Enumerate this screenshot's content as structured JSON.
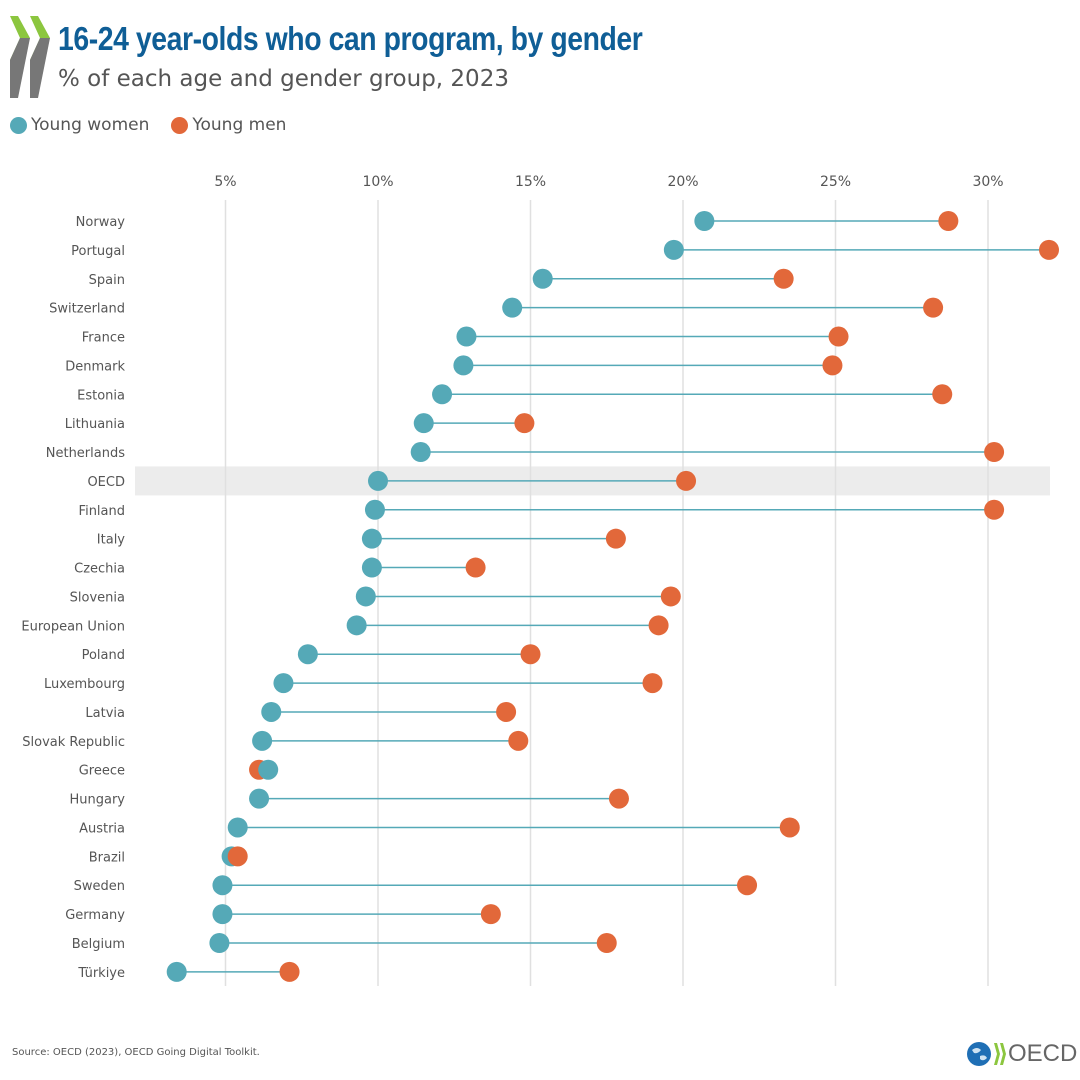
{
  "header": {
    "title": "16-24 year-olds who can program, by gender",
    "subtitle": "% of each age and gender group, 2023"
  },
  "footer": {
    "source": "Source: OECD (2023), OECD Going Digital Toolkit.",
    "logo_text": "OECD"
  },
  "colors": {
    "women": "#55a9b7",
    "men": "#e2683a",
    "title": "#0f5e96",
    "highlight": "#ececec"
  },
  "chart_data": {
    "type": "dot-plot",
    "title": "16-24 year-olds who can program, by gender",
    "subtitle": "% of each age and gender group, 2023",
    "xlim": [
      0,
      32
    ],
    "xticks": [
      5,
      10,
      15,
      20,
      25,
      30
    ],
    "xtick_labels": [
      "5%",
      "10%",
      "15%",
      "20%",
      "25%",
      "30%"
    ],
    "grid": true,
    "legend_placement": "top-left",
    "highlight_category": "OECD",
    "categories": [
      "Norway",
      "Portugal",
      "Spain",
      "Switzerland",
      "France",
      "Denmark",
      "Estonia",
      "Lithuania",
      "Netherlands",
      "OECD",
      "Finland",
      "Italy",
      "Czechia",
      "Slovenia",
      "European Union",
      "Poland",
      "Luxembourg",
      "Latvia",
      "Slovak Republic",
      "Greece",
      "Hungary",
      "Austria",
      "Brazil",
      "Sweden",
      "Germany",
      "Belgium",
      "Türkiye"
    ],
    "series": [
      {
        "name": "Young women",
        "values": [
          20.7,
          19.7,
          15.4,
          14.4,
          12.9,
          12.8,
          12.1,
          11.5,
          11.4,
          10.0,
          9.9,
          9.8,
          9.8,
          9.6,
          9.3,
          7.7,
          6.9,
          6.5,
          6.2,
          6.4,
          6.1,
          5.4,
          5.2,
          4.9,
          4.9,
          4.8,
          3.4
        ]
      },
      {
        "name": "Young men",
        "values": [
          28.7,
          32.0,
          23.3,
          28.2,
          25.1,
          24.9,
          28.5,
          14.8,
          30.2,
          20.1,
          30.2,
          17.8,
          13.2,
          19.6,
          19.2,
          15.0,
          19.0,
          14.2,
          14.6,
          6.1,
          17.9,
          23.5,
          5.4,
          22.1,
          13.7,
          17.5,
          7.1
        ]
      }
    ]
  }
}
